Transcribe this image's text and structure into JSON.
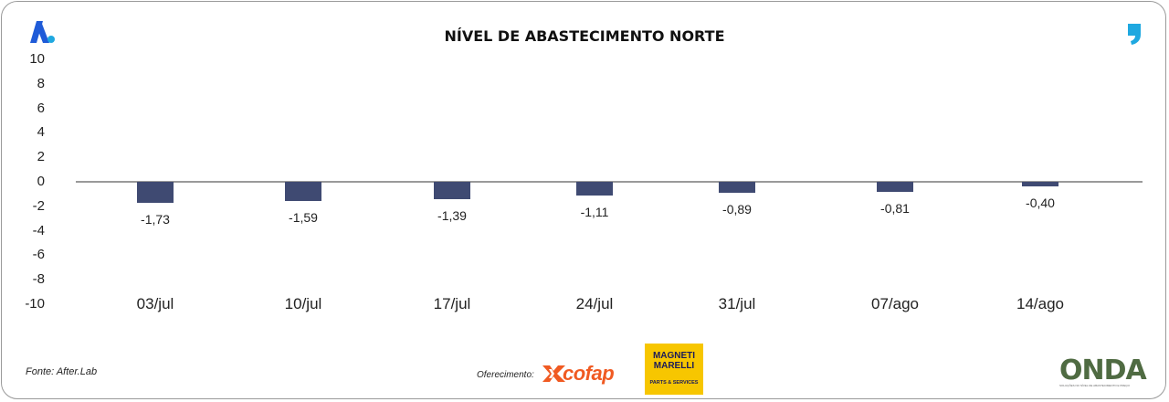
{
  "title": "NÍVEL DE ABASTECIMENTO NORTE",
  "source": "Fonte: After.Lab",
  "sponsor_label": "Oferecimento:",
  "sponsors": {
    "cofap": "cofap",
    "magneti_top": "MAGNETI MARELLI",
    "magneti_bottom": "PARTS & SERVICES",
    "onda": "ONDA",
    "onda_sub": "SOLUÇÕES NO NÍVEL DE ABASTECIMENTO E PREÇO"
  },
  "colors": {
    "bar": "#3f4a72",
    "axis": "#9a9a9a",
    "brand_blue": "#1f5bd8",
    "brand_cyan": "#1fa8e0"
  },
  "chart_data": {
    "type": "bar",
    "title": "NÍVEL DE ABASTECIMENTO NORTE",
    "xlabel": "",
    "ylabel": "",
    "categories": [
      "03/jul",
      "10/jul",
      "17/jul",
      "24/jul",
      "31/jul",
      "07/ago",
      "14/ago"
    ],
    "values": [
      -1.73,
      -1.59,
      -1.39,
      -1.11,
      -0.89,
      -0.81,
      -0.4
    ],
    "value_labels": [
      "-1,73",
      "-1,59",
      "-1,39",
      "-1,11",
      "-0,89",
      "-0,81",
      "-0,40"
    ],
    "ylim": [
      -10,
      10
    ],
    "y_ticks": [
      "10",
      "8",
      "6",
      "4",
      "2",
      "0",
      "-2",
      "-4",
      "-6",
      "-8",
      "-10"
    ],
    "grid": false,
    "legend": "none"
  }
}
